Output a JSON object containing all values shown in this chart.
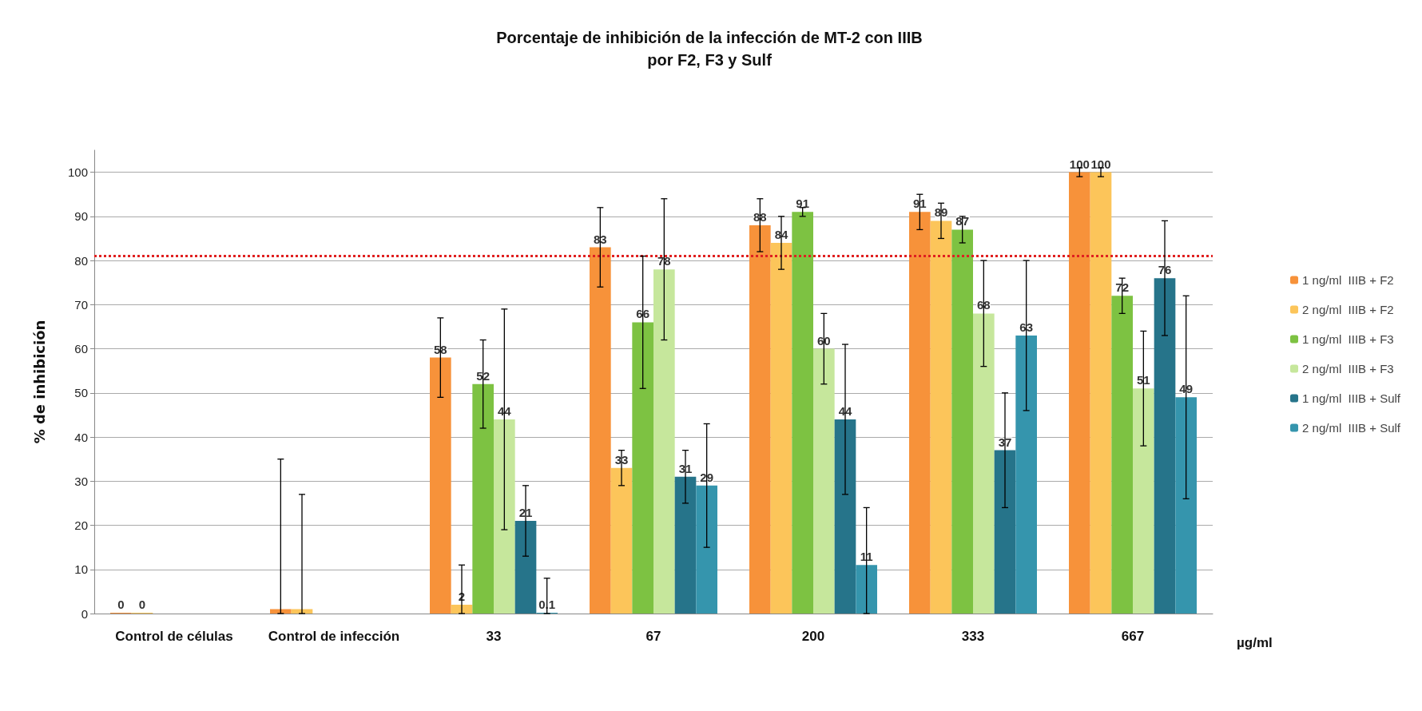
{
  "chart_data": {
    "type": "bar",
    "title": "Porcentaje de inhibición de la infección de MT-2 con IIIB\npor F2, F3 y Sulf",
    "ylabel": "% de inhibición",
    "xlabel": "µg/ml",
    "categories": [
      "Control de células",
      "Control de infección",
      "33",
      "67",
      "200",
      "333",
      "667"
    ],
    "series": [
      {
        "name": "1 ng/ml  IIIB + F2",
        "color": "#f7923a",
        "values": [
          0,
          1,
          58,
          83,
          88,
          91,
          100
        ],
        "errors": [
          null,
          [
            0,
            35
          ],
          [
            49,
            67
          ],
          [
            74,
            92
          ],
          [
            82,
            94
          ],
          [
            87,
            95
          ],
          [
            99,
            101
          ]
        ],
        "value_labels": [
          "0",
          null,
          "58",
          "83",
          "88",
          "91",
          "100"
        ]
      },
      {
        "name": "2 ng/ml  IIIB + F2",
        "color": "#fcc55a",
        "values": [
          0,
          1,
          2,
          33,
          84,
          89,
          100
        ],
        "errors": [
          null,
          [
            0,
            27
          ],
          [
            0,
            11
          ],
          [
            29,
            37
          ],
          [
            78,
            90
          ],
          [
            85,
            93
          ],
          [
            99,
            101
          ]
        ],
        "value_labels": [
          "0",
          null,
          "2",
          "33",
          "84",
          "89",
          "100"
        ]
      },
      {
        "name": "1 ng/ml  IIIB + F3",
        "color": "#7dc242",
        "values": [
          null,
          null,
          52,
          66,
          91,
          87,
          72
        ],
        "errors": [
          null,
          null,
          [
            42,
            62
          ],
          [
            51,
            81
          ],
          [
            90,
            92
          ],
          [
            84,
            90
          ],
          [
            68,
            76
          ]
        ],
        "value_labels": [
          null,
          null,
          "52",
          "66",
          "91",
          "87",
          "72"
        ]
      },
      {
        "name": "2 ng/ml  IIIB + F3",
        "color": "#c6e79c",
        "values": [
          null,
          null,
          44,
          78,
          60,
          68,
          51
        ],
        "errors": [
          null,
          null,
          [
            19,
            69
          ],
          [
            62,
            94
          ],
          [
            52,
            68
          ],
          [
            56,
            80
          ],
          [
            38,
            64
          ]
        ],
        "value_labels": [
          null,
          null,
          "44",
          "78",
          "60",
          "68",
          "51"
        ]
      },
      {
        "name": "1 ng/ml  IIIB + Sulf",
        "color": "#26748a",
        "values": [
          null,
          null,
          21,
          31,
          44,
          37,
          76
        ],
        "errors": [
          null,
          null,
          [
            13,
            29
          ],
          [
            25,
            37
          ],
          [
            27,
            61
          ],
          [
            24,
            50
          ],
          [
            63,
            89
          ]
        ],
        "value_labels": [
          null,
          null,
          "21",
          "31",
          "44",
          "37",
          "76"
        ]
      },
      {
        "name": "2 ng/ml  IIIB + Sulf",
        "color": "#3595ad",
        "values": [
          null,
          null,
          0.1,
          29,
          11,
          63,
          49
        ],
        "errors": [
          null,
          null,
          [
            0,
            8
          ],
          [
            15,
            43
          ],
          [
            0,
            24
          ],
          [
            46,
            80
          ],
          [
            26,
            72
          ]
        ],
        "value_labels": [
          null,
          null,
          "0.1",
          "29",
          "11",
          "63",
          "49"
        ]
      }
    ],
    "ylim": [
      0,
      105
    ],
    "yticks": [
      0,
      10,
      20,
      30,
      40,
      50,
      60,
      70,
      80,
      90,
      100
    ],
    "ref_lines": [
      {
        "axis": "y",
        "value": 81,
        "color": "#e02020",
        "line_style": "dotted"
      }
    ],
    "grid": "y",
    "legend": "right"
  }
}
